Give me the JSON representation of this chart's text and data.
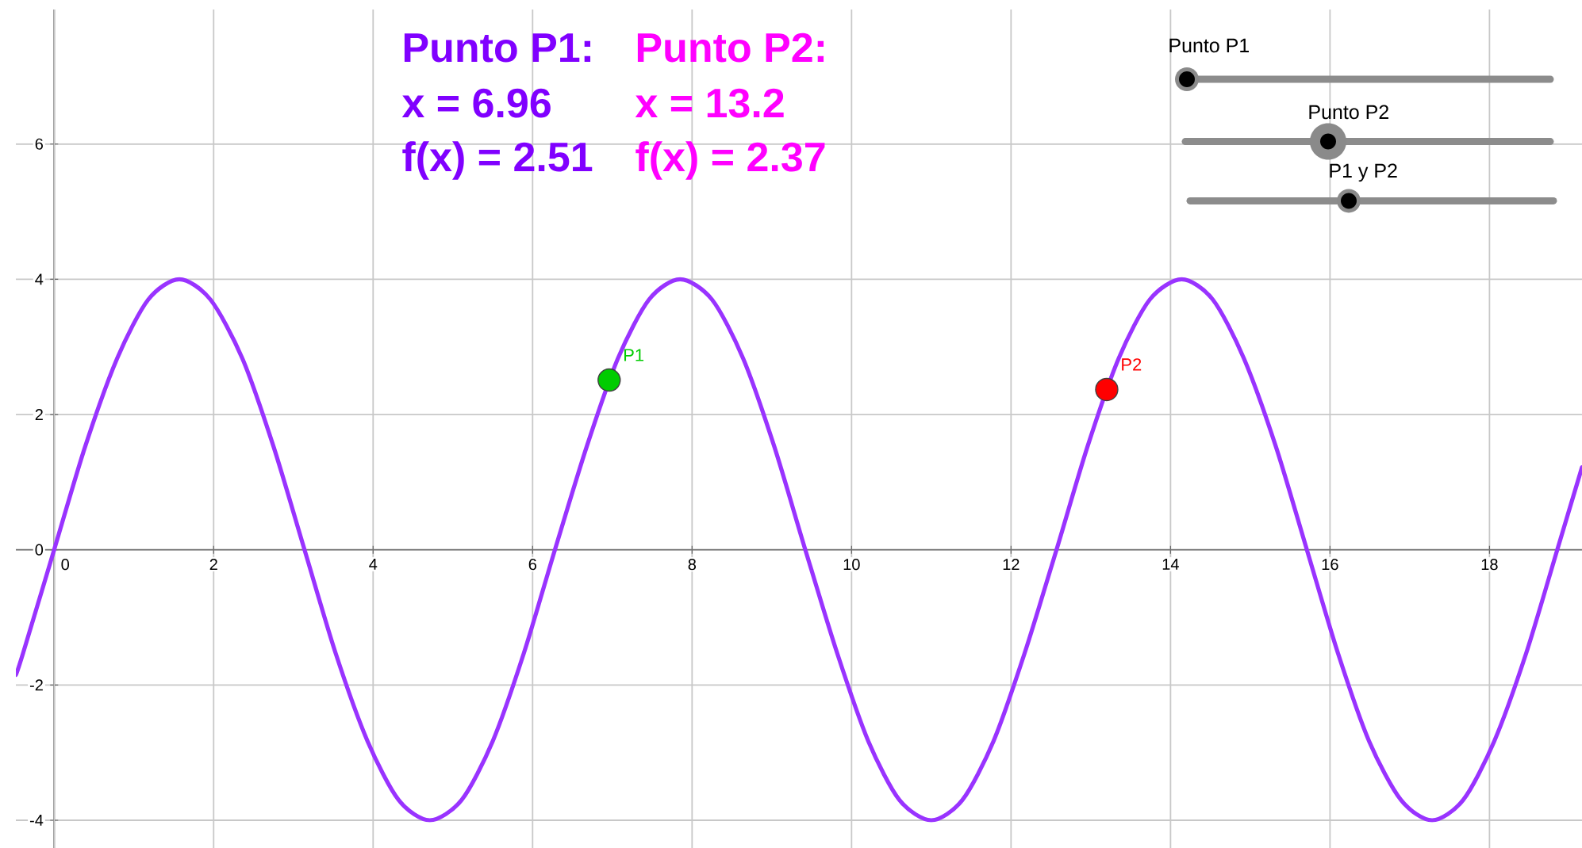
{
  "chart_data": {
    "type": "line",
    "annotations": [
      "Punto P1:",
      "x = 6.96",
      "f(x) = 2.51",
      "Punto P2:",
      "x = 13.2",
      "f(x) = 2.37",
      "Punto P1",
      "Punto P2",
      "P1 y P2"
    ],
    "series": [
      {
        "color": "#9933ff",
        "x": [
          -0.48,
          -0.39,
          0,
          0.39,
          0.79,
          1.18,
          1.57,
          1.96,
          2.36,
          2.75,
          3.14,
          3.53,
          3.93,
          4.32,
          4.71,
          5.11,
          5.5,
          5.89,
          6.28,
          6.68,
          7.07,
          7.46,
          7.85,
          8.25,
          8.64,
          9.03,
          9.42,
          9.82,
          10.21,
          10.6,
          11.0,
          11.39,
          11.78,
          12.17,
          12.57,
          12.96,
          13.35,
          13.74,
          14.14,
          14.53,
          14.92,
          15.32,
          15.71,
          16.1,
          16.49,
          16.89,
          17.28,
          17.67,
          18.06,
          18.46,
          18.85,
          19.16
        ],
        "values": [
          -1.85,
          -1.53,
          0,
          1.53,
          2.83,
          3.7,
          4,
          3.7,
          2.83,
          1.53,
          0,
          -1.53,
          -2.83,
          -3.7,
          -4,
          -3.7,
          -2.83,
          -1.53,
          0,
          1.53,
          2.83,
          3.7,
          4,
          3.7,
          2.83,
          1.53,
          0,
          -1.53,
          -2.83,
          -3.7,
          -4,
          -3.7,
          -2.83,
          -1.53,
          0,
          1.53,
          2.83,
          3.7,
          4,
          3.7,
          2.83,
          1.53,
          0,
          -1.53,
          -2.83,
          -3.7,
          -4,
          -3.7,
          -2.83,
          -1.53,
          0,
          1.22
        ]
      },
      {
        "type": "scatter",
        "name": "P1",
        "color": "#00cc00",
        "marker": "circle",
        "x": [
          6.96
        ],
        "values": [
          2.51
        ]
      },
      {
        "type": "scatter",
        "name": "P2",
        "color": "#ff0000",
        "marker": "circle",
        "x": [
          13.2
        ],
        "values": [
          2.37
        ]
      }
    ],
    "xlim": [
      -0.48,
      19.16
    ],
    "ylim": [
      -4.41,
      7.99
    ],
    "xticks": [
      0,
      2,
      4,
      6,
      8,
      10,
      12,
      14,
      16,
      18
    ],
    "yticks": [
      -4,
      -2,
      0,
      2,
      4,
      6
    ],
    "grid": true
  }
}
